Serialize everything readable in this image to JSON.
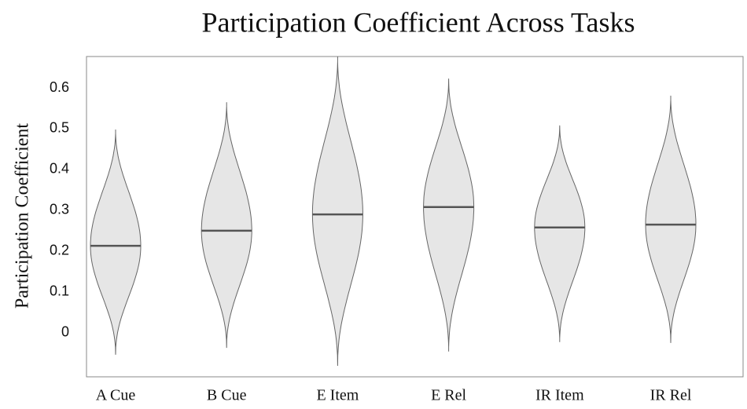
{
  "chart_data": {
    "type": "violin",
    "title": "Participation Coefficient Across Tasks",
    "y_label": "Participation Coefficient",
    "categories": [
      "A Cue",
      "B Cue",
      "E Item",
      "E Rel",
      "IR Item",
      "IR Rel"
    ],
    "series": [
      {
        "color": "#e6e6e6",
        "min": [
          -0.054,
          -0.037,
          -0.081,
          -0.046,
          -0.023,
          -0.025
        ],
        "max": [
          0.498,
          0.565,
          0.677,
          0.623,
          0.508,
          0.581
        ],
        "median": [
          0.213,
          0.25,
          0.29,
          0.308,
          0.258,
          0.265
        ]
      }
    ],
    "ylim": [
      -0.108,
      0.677
    ],
    "yticks": [
      0,
      0.1,
      0.2,
      0.3,
      0.4,
      0.5,
      0.6
    ],
    "grid": false
  }
}
